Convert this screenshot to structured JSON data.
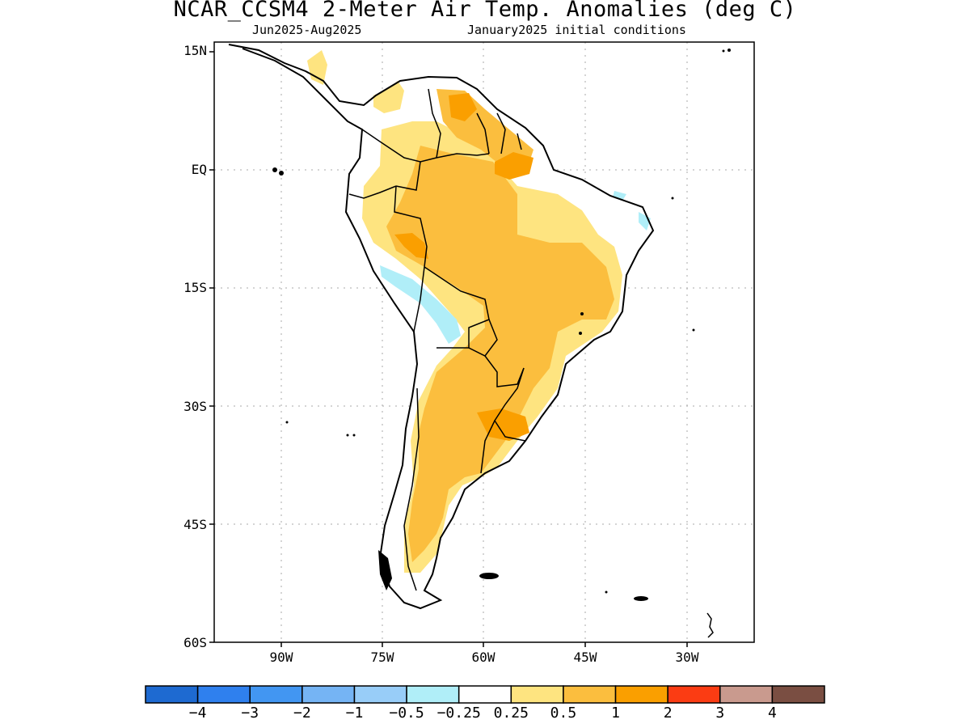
{
  "title": "NCAR_CCSM4 2-Meter Air Temp. Anomalies (deg C)",
  "subtitle_left": "Jun2025-Aug2025",
  "subtitle_right": "January2025 initial conditions",
  "lat_labels": [
    "15N",
    "EQ",
    "15S",
    "30S",
    "45S",
    "60S"
  ],
  "lon_labels": [
    "90W",
    "75W",
    "60W",
    "45W",
    "30W"
  ],
  "colorbar": {
    "colors": [
      "#1e6ad1",
      "#2f80ee",
      "#4296f2",
      "#75b4f4",
      "#98cdf8",
      "#b0eef8",
      "#ffffff",
      "#fee480",
      "#fbbe3e",
      "#fa9f00",
      "#fb3c13",
      "#c99a8e",
      "#7a4e42"
    ],
    "labels": [
      "−4",
      "−3",
      "−2",
      "−1",
      "−0.5",
      "−0.25",
      "0.25",
      "0.5",
      "1",
      "2",
      "3",
      "4"
    ]
  },
  "map_colors": {
    "light_yellow": "#fee480",
    "orange_yellow": "#fbbe3e",
    "orange": "#fa9f00",
    "light_blue": "#b0eef8",
    "white": "#ffffff"
  }
}
